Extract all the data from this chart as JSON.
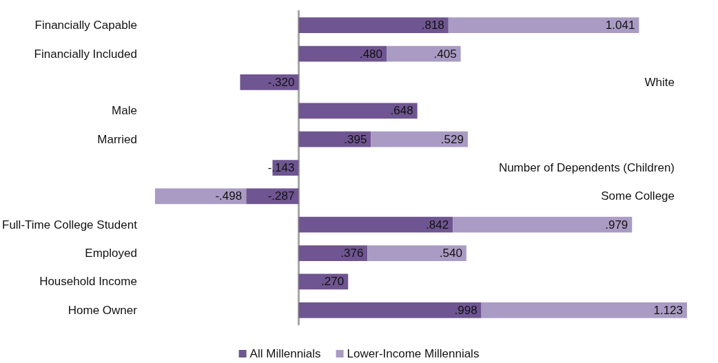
{
  "chart_data": {
    "type": "bar",
    "orientation": "horizontal",
    "stacked": true,
    "legend": "bottom",
    "grid": false,
    "tick_labels": "y",
    "categories": [
      "Financially Capable",
      "Financially Included",
      "White",
      "Male",
      "Married",
      "Number of Dependents (Children)",
      "Some College",
      "Full-Time College Student",
      "Employed",
      "Household Income",
      "Home Owner"
    ],
    "series": [
      {
        "name": "All Millennials",
        "color": "#6f5591",
        "values": [
          0.818,
          0.48,
          -0.32,
          0.648,
          0.395,
          -0.143,
          -0.287,
          0.842,
          0.376,
          0.27,
          0.998
        ],
        "value_labels": [
          ".818",
          ".480",
          "-.320",
          ".648",
          ".395",
          "-.143",
          "-.287",
          ".842",
          ".376",
          ".270",
          ".998"
        ]
      },
      {
        "name": "Lower-Income Millennials",
        "color": "#a99bc3",
        "values": [
          1.041,
          0.405,
          null,
          null,
          0.529,
          null,
          -0.498,
          0.979,
          0.54,
          null,
          1.123
        ],
        "value_labels": [
          "1.041",
          ".405",
          null,
          null,
          ".529",
          null,
          "-.498",
          ".979",
          ".540",
          null,
          "1.123"
        ]
      }
    ]
  }
}
